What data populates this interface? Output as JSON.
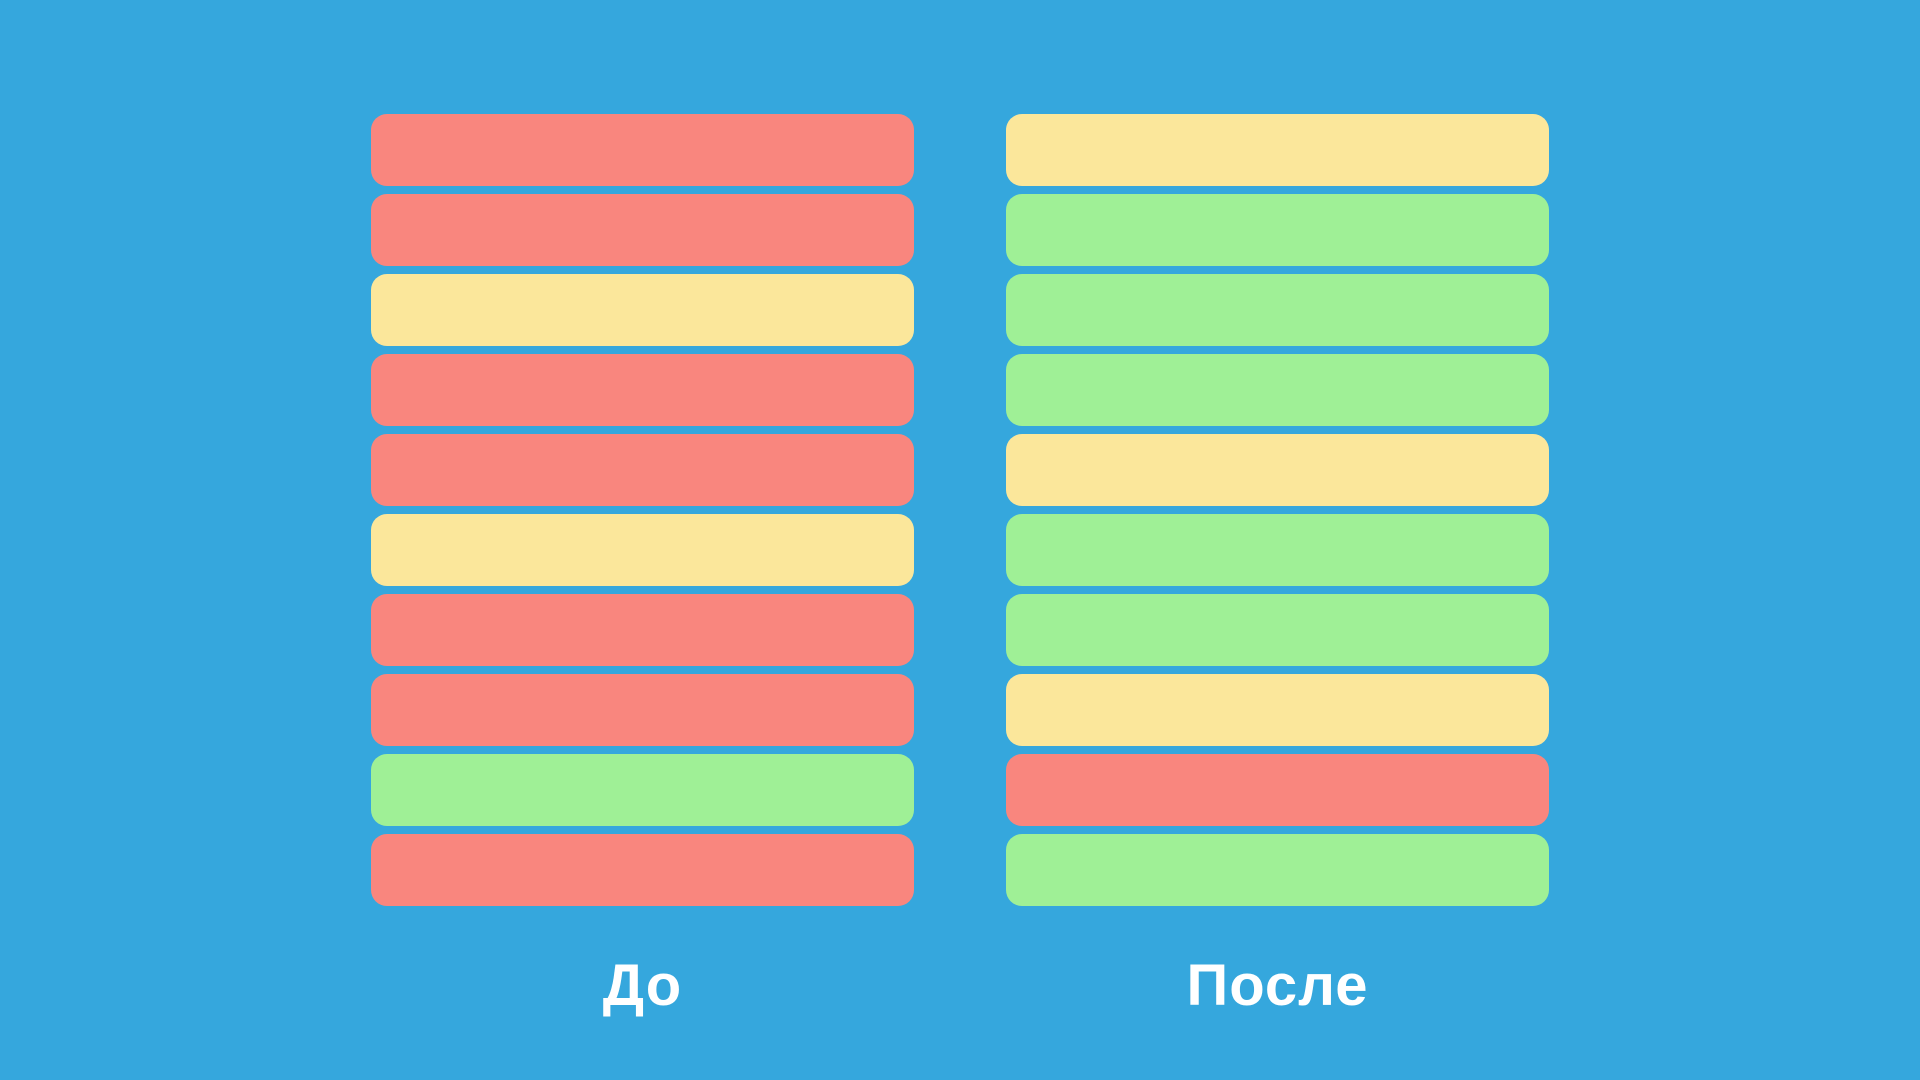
{
  "colors": {
    "background": "#35A7DD",
    "red": "#F9867E",
    "yellow": "#FBE79B",
    "green": "#9FF096",
    "label_text": "#FFFFFF"
  },
  "columns": [
    {
      "label": "До",
      "bars": [
        "red",
        "red",
        "yellow",
        "red",
        "red",
        "yellow",
        "red",
        "red",
        "green",
        "red"
      ]
    },
    {
      "label": "После",
      "bars": [
        "yellow",
        "green",
        "green",
        "green",
        "yellow",
        "green",
        "green",
        "yellow",
        "red",
        "green"
      ]
    }
  ]
}
